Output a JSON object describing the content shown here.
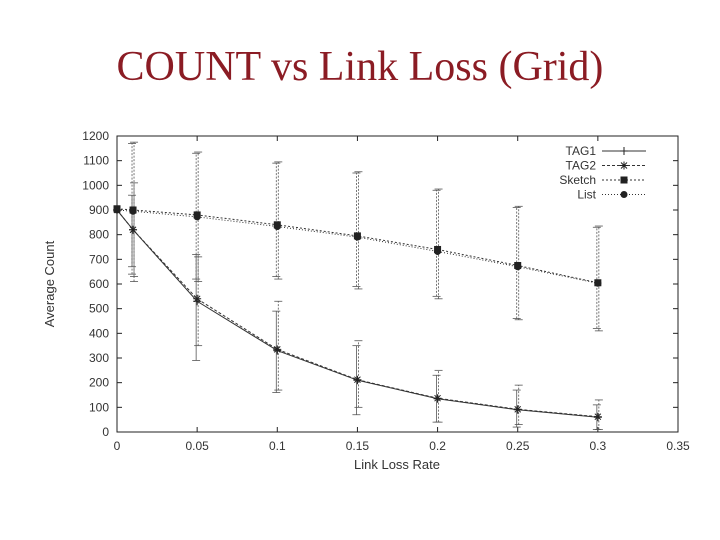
{
  "slide": {
    "title": "COUNT vs Link Loss (Grid)"
  },
  "chart_data": {
    "type": "line",
    "xlabel": "Link Loss Rate",
    "ylabel": "Average Count",
    "xlim": [
      0,
      0.35
    ],
    "ylim": [
      0,
      1200
    ],
    "xticks": [
      0,
      0.05,
      0.1,
      0.15,
      0.2,
      0.25,
      0.3,
      0.35
    ],
    "xtick_labels": [
      "0",
      "0.05",
      "0.1",
      "0.15",
      "0.2",
      "0.25",
      "0.3",
      "0.35"
    ],
    "yticks": [
      0,
      100,
      200,
      300,
      400,
      500,
      600,
      700,
      800,
      900,
      1000,
      1100,
      1200
    ],
    "ytick_labels": [
      "0",
      "100",
      "200",
      "300",
      "400",
      "500",
      "600",
      "700",
      "800",
      "900",
      "1000",
      "1100",
      "1200"
    ],
    "grid": false,
    "legend_position": "top-right",
    "x": [
      0,
      0.01,
      0.05,
      0.1,
      0.15,
      0.2,
      0.25,
      0.3
    ],
    "series": [
      {
        "name": "TAG1",
        "marker": "plus",
        "y": [
          900,
          820,
          530,
          330,
          210,
          135,
          90,
          60
        ],
        "err_low": [
          900,
          670,
          290,
          160,
          70,
          40,
          20,
          10
        ],
        "err_high": [
          900,
          960,
          720,
          490,
          350,
          230,
          170,
          110
        ]
      },
      {
        "name": "TAG2",
        "marker": "star",
        "y": [
          900,
          820,
          540,
          335,
          212,
          137,
          92,
          62
        ],
        "err_low": [
          900,
          610,
          350,
          170,
          100,
          40,
          30,
          10
        ],
        "err_high": [
          900,
          1010,
          710,
          530,
          370,
          250,
          190,
          130
        ]
      },
      {
        "name": "Sketch",
        "marker": "square",
        "y": [
          905,
          900,
          880,
          840,
          795,
          740,
          675,
          605
        ],
        "err_low": [
          905,
          640,
          620,
          630,
          590,
          550,
          460,
          420
        ],
        "err_high": [
          905,
          1170,
          1130,
          1090,
          1050,
          980,
          910,
          830
        ]
      },
      {
        "name": "List",
        "marker": "circle",
        "y": [
          900,
          895,
          872,
          833,
          790,
          732,
          670,
          603
        ],
        "err_low": [
          900,
          630,
          610,
          620,
          580,
          540,
          455,
          410
        ],
        "err_high": [
          900,
          1175,
          1135,
          1095,
          1055,
          985,
          915,
          835
        ]
      }
    ]
  }
}
